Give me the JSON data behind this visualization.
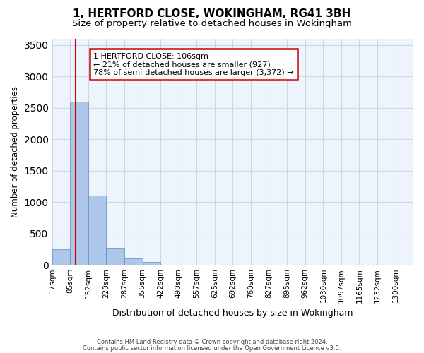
{
  "title1": "1, HERTFORD CLOSE, WOKINGHAM, RG41 3BH",
  "title2": "Size of property relative to detached houses in Wokingham",
  "xlabel": "Distribution of detached houses by size in Wokingham",
  "ylabel": "Number of detached properties",
  "footer1": "Contains HM Land Registry data © Crown copyright and database right 2024.",
  "footer2": "Contains public sector information licensed under the Open Government Licence v3.0.",
  "annotation_line1": "1 HERTFORD CLOSE: 106sqm",
  "annotation_line2": "← 21% of detached houses are smaller (927)",
  "annotation_line3": "78% of semi-detached houses are larger (3,372) →",
  "bar_edges": [
    17,
    85,
    152,
    220,
    287,
    355,
    422,
    490,
    557,
    625,
    692,
    760,
    827,
    895,
    962,
    1030,
    1097,
    1165,
    1232,
    1300,
    1367
  ],
  "bar_heights": [
    250,
    2600,
    1100,
    270,
    100,
    50,
    5,
    2,
    1,
    0,
    0,
    0,
    0,
    0,
    0,
    0,
    0,
    0,
    0,
    0
  ],
  "bar_color": "#aec6e8",
  "bar_edgecolor": "#5a8fc3",
  "grid_color": "#c8d8e8",
  "property_line_x": 106,
  "property_line_color": "#cc0000",
  "ylim": [
    0,
    3600
  ],
  "yticks": [
    0,
    500,
    1000,
    1500,
    2000,
    2500,
    3000,
    3500
  ],
  "annotation_box_color": "#cc0000",
  "bg_color": "#ffffff",
  "plot_bg_color": "#eef4fb"
}
